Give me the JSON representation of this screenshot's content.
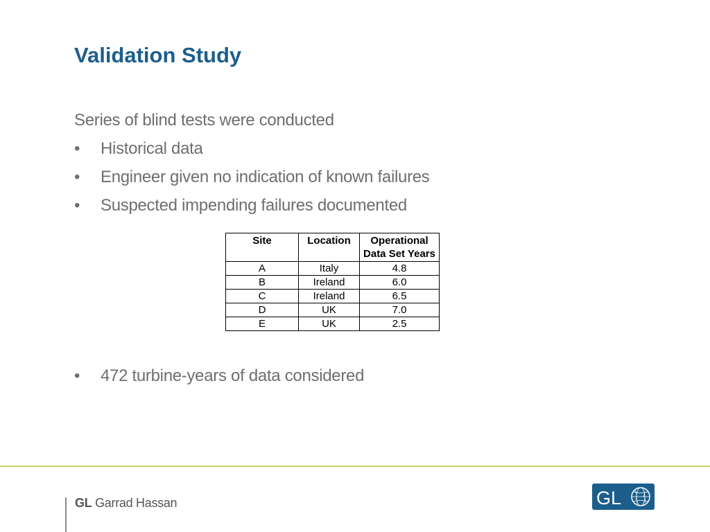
{
  "slide": {
    "title": "Validation Study",
    "intro": "Series of blind tests were conducted",
    "bullet_char": "•",
    "bullets": [
      "Historical data",
      "Engineer given no indication of known failures",
      "Suspected impending failures documented"
    ],
    "bullets_after_table": [
      "472 turbine-years of data considered"
    ]
  },
  "table": {
    "headers": [
      "Site",
      "Location",
      "Operational Data Set Years"
    ],
    "rows": [
      [
        "A",
        "Italy",
        "4.8"
      ],
      [
        "B",
        "Ireland",
        "6.0"
      ],
      [
        "C",
        "Ireland",
        "6.5"
      ],
      [
        "D",
        "UK",
        "7.0"
      ],
      [
        "E",
        "UK",
        "2.5"
      ]
    ]
  },
  "footer": {
    "brand_prefix": "GL",
    "brand_name": "Garrad Hassan",
    "logo_text": "GL",
    "logo_icon": "globe-icon",
    "accent_color": "#c7d66a",
    "logo_color": "#1b5e8c"
  }
}
